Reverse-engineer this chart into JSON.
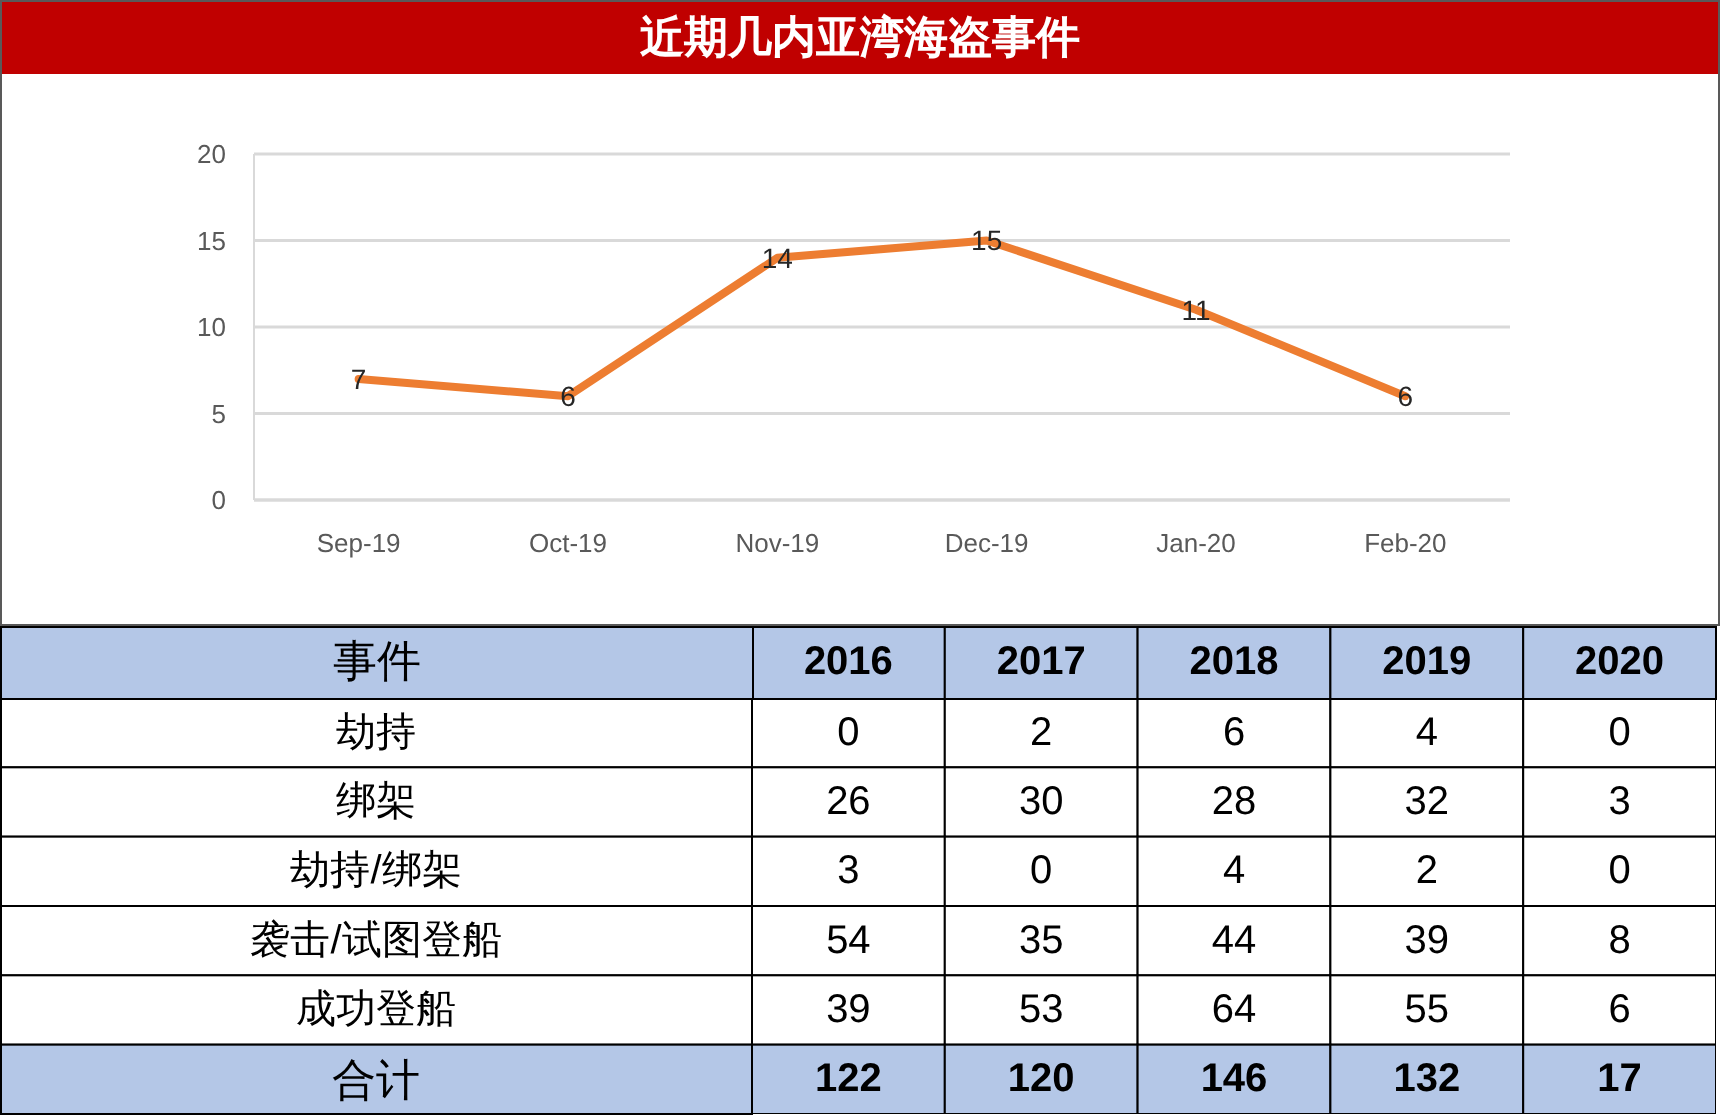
{
  "chart_data": [
    {
      "type": "line",
      "title": "近期几内亚湾海盗事件",
      "categories": [
        "Sep-19",
        "Oct-19",
        "Nov-19",
        "Dec-19",
        "Jan-20",
        "Feb-20"
      ],
      "series": [
        {
          "color": "#ed7d31",
          "values": [
            7,
            6,
            14,
            15,
            11,
            6
          ]
        }
      ],
      "ylim": [
        0,
        20
      ],
      "yticks": [
        0,
        5,
        10,
        15,
        20
      ],
      "grid": "y",
      "data_labels": true,
      "marker": "none"
    },
    {
      "type": "heatmap",
      "ylabel": "事件",
      "categories": [
        "2016",
        "2017",
        "2018",
        "2019",
        "2020"
      ],
      "y_categories": [
        "劫持",
        "绑架",
        "劫持/绑架",
        "袭击/试图登船",
        "成功登船",
        "合计"
      ],
      "cells": [
        [
          0,
          2,
          6,
          4,
          0
        ],
        [
          26,
          30,
          28,
          32,
          3
        ],
        [
          3,
          0,
          4,
          2,
          0
        ],
        [
          54,
          35,
          44,
          39,
          8
        ],
        [
          39,
          53,
          64,
          55,
          6
        ],
        [
          122,
          120,
          146,
          132,
          17
        ]
      ],
      "colors": [
        [
          "#ffffff",
          "#ffffff",
          "#ffffff",
          "#ffffff",
          "#ffffff"
        ],
        [
          "#ffffff",
          "#ffffff",
          "#ffffff",
          "#ffffff",
          "#ffffff"
        ],
        [
          "#ffffff",
          "#ffffff",
          "#ffffff",
          "#ffffff",
          "#ffffff"
        ],
        [
          "#ffffff",
          "#ffffff",
          "#ffffff",
          "#ffffff",
          "#ffffff"
        ],
        [
          "#ffffff",
          "#ffffff",
          "#ffffff",
          "#ffffff",
          "#ffffff"
        ],
        [
          "#b4c7e7",
          "#b4c7e7",
          "#b4c7e7",
          "#b4c7e7",
          "#b4c7e7"
        ]
      ],
      "data_labels": true
    }
  ]
}
